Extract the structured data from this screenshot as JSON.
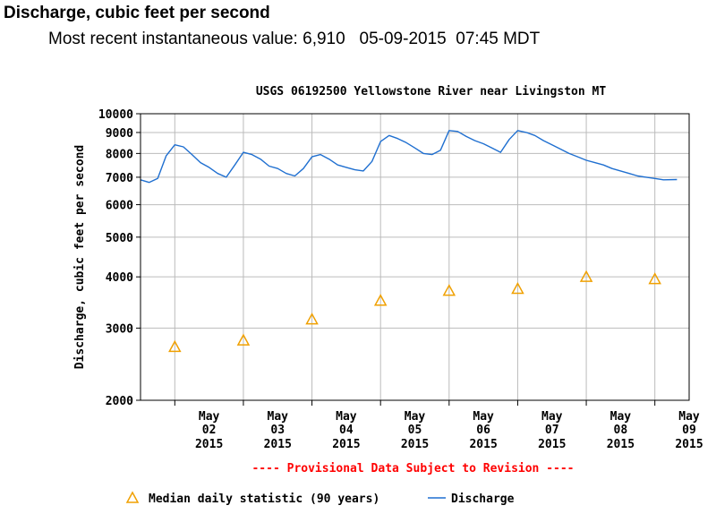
{
  "header": {
    "title": "Discharge, cubic feet per second",
    "recent_label": "Most recent instantaneous value:",
    "recent_value": "6,910",
    "recent_date": "05-09-2015",
    "recent_time": "07:45 MDT"
  },
  "chart_data": {
    "type": "line",
    "title": "USGS 06192500 Yellowstone River near Livingston MT",
    "ylabel": "Discharge, cubic feet per second",
    "xlabel": "",
    "yscale": "log",
    "ylim": [
      2000,
      10000
    ],
    "yticks": [
      "10000",
      "9000",
      "8000",
      "7000",
      "6000",
      "5000",
      "4000",
      "3000",
      "2000"
    ],
    "xlim": [
      "2015-05-01T12:00",
      "2015-05-09T12:00"
    ],
    "xticks": [
      {
        "month": "May",
        "day": "02",
        "year": "2015"
      },
      {
        "month": "May",
        "day": "03",
        "year": "2015"
      },
      {
        "month": "May",
        "day": "04",
        "year": "2015"
      },
      {
        "month": "May",
        "day": "05",
        "year": "2015"
      },
      {
        "month": "May",
        "day": "06",
        "year": "2015"
      },
      {
        "month": "May",
        "day": "07",
        "year": "2015"
      },
      {
        "month": "May",
        "day": "08",
        "year": "2015"
      },
      {
        "month": "May",
        "day": "09",
        "year": "2015"
      }
    ],
    "grid": true,
    "note": "---- Provisional Data Subject to Revision ----",
    "series": [
      {
        "name": "Discharge",
        "color": "#1f6fd0",
        "points": [
          [
            "2015-05-01T12:00",
            6900
          ],
          [
            "2015-05-01T15:00",
            6800
          ],
          [
            "2015-05-01T18:00",
            6950
          ],
          [
            "2015-05-01T21:00",
            7900
          ],
          [
            "2015-05-02T00:00",
            8400
          ],
          [
            "2015-05-02T03:00",
            8300
          ],
          [
            "2015-05-02T06:00",
            7950
          ],
          [
            "2015-05-02T09:00",
            7600
          ],
          [
            "2015-05-02T12:00",
            7400
          ],
          [
            "2015-05-02T15:00",
            7150
          ],
          [
            "2015-05-02T18:00",
            7000
          ],
          [
            "2015-05-02T21:00",
            7500
          ],
          [
            "2015-05-03T00:00",
            8050
          ],
          [
            "2015-05-03T03:00",
            7950
          ],
          [
            "2015-05-03T06:00",
            7750
          ],
          [
            "2015-05-03T09:00",
            7450
          ],
          [
            "2015-05-03T12:00",
            7350
          ],
          [
            "2015-05-03T15:00",
            7150
          ],
          [
            "2015-05-03T18:00",
            7050
          ],
          [
            "2015-05-03T21:00",
            7350
          ],
          [
            "2015-05-04T00:00",
            7850
          ],
          [
            "2015-05-04T03:00",
            7950
          ],
          [
            "2015-05-04T06:00",
            7750
          ],
          [
            "2015-05-04T09:00",
            7500
          ],
          [
            "2015-05-04T12:00",
            7400
          ],
          [
            "2015-05-04T15:00",
            7300
          ],
          [
            "2015-05-04T18:00",
            7250
          ],
          [
            "2015-05-04T21:00",
            7650
          ],
          [
            "2015-05-05T00:00",
            8550
          ],
          [
            "2015-05-05T03:00",
            8850
          ],
          [
            "2015-05-05T06:00",
            8700
          ],
          [
            "2015-05-05T09:00",
            8500
          ],
          [
            "2015-05-05T12:00",
            8250
          ],
          [
            "2015-05-05T15:00",
            8000
          ],
          [
            "2015-05-05T18:00",
            7950
          ],
          [
            "2015-05-05T21:00",
            8150
          ],
          [
            "2015-05-06T00:00",
            9100
          ],
          [
            "2015-05-06T03:00",
            9050
          ],
          [
            "2015-05-06T06:00",
            8800
          ],
          [
            "2015-05-06T09:00",
            8600
          ],
          [
            "2015-05-06T12:00",
            8450
          ],
          [
            "2015-05-06T15:00",
            8250
          ],
          [
            "2015-05-06T18:00",
            8050
          ],
          [
            "2015-05-06T21:00",
            8650
          ],
          [
            "2015-05-07T00:00",
            9100
          ],
          [
            "2015-05-07T03:00",
            9000
          ],
          [
            "2015-05-07T06:00",
            8850
          ],
          [
            "2015-05-07T09:00",
            8600
          ],
          [
            "2015-05-07T12:00",
            8400
          ],
          [
            "2015-05-07T15:00",
            8200
          ],
          [
            "2015-05-07T18:00",
            8000
          ],
          [
            "2015-05-07T21:00",
            7850
          ],
          [
            "2015-05-08T00:00",
            7700
          ],
          [
            "2015-05-08T03:00",
            7600
          ],
          [
            "2015-05-08T06:00",
            7500
          ],
          [
            "2015-05-08T09:00",
            7350
          ],
          [
            "2015-05-08T12:00",
            7250
          ],
          [
            "2015-05-08T15:00",
            7150
          ],
          [
            "2015-05-08T18:00",
            7050
          ],
          [
            "2015-05-08T21:00",
            7000
          ],
          [
            "2015-05-09T00:00",
            6950
          ],
          [
            "2015-05-09T03:00",
            6900
          ],
          [
            "2015-05-09T07:45",
            6910
          ]
        ]
      },
      {
        "name": "Median daily statistic (90 years)",
        "color": "#f0a000",
        "marker": "triangle",
        "points": [
          [
            "2015-05-02T00:00",
            2700
          ],
          [
            "2015-05-03T00:00",
            2800
          ],
          [
            "2015-05-04T00:00",
            3150
          ],
          [
            "2015-05-05T00:00",
            3500
          ],
          [
            "2015-05-06T00:00",
            3700
          ],
          [
            "2015-05-07T00:00",
            3740
          ],
          [
            "2015-05-08T00:00",
            4000
          ],
          [
            "2015-05-09T00:00",
            3950
          ]
        ]
      }
    ],
    "legend": {
      "placement": "bottom",
      "items": [
        {
          "label": "Median daily statistic (90 years)",
          "symbol": "triangle",
          "color": "#f0a000"
        },
        {
          "label": "Discharge",
          "symbol": "line",
          "color": "#1f6fd0"
        }
      ]
    },
    "colors": {
      "note": "#ff0000",
      "grid": "#bbbbbb",
      "axis": "#000000"
    }
  }
}
